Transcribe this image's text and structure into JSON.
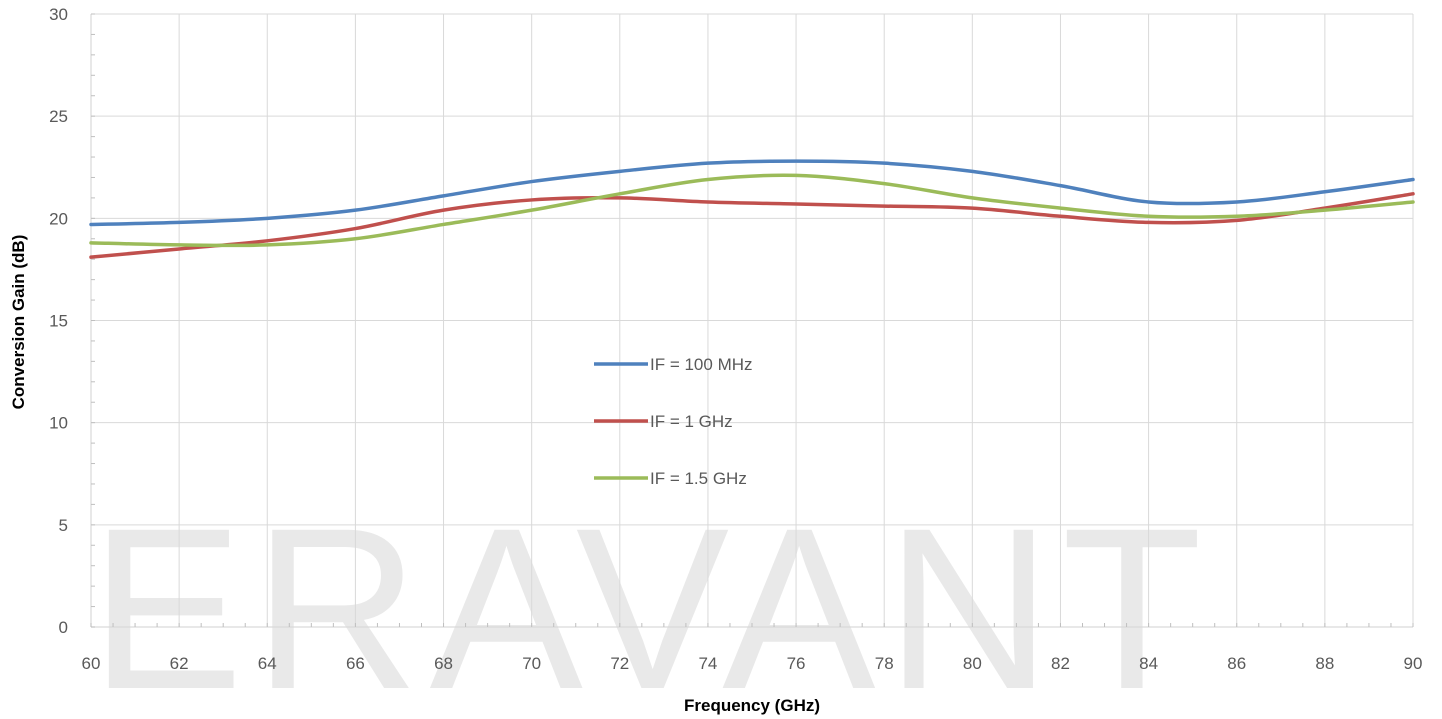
{
  "chart_data": {
    "type": "line",
    "xlabel": "Frequency (GHz)",
    "ylabel": "Conversion Gain (dB)",
    "xlim": [
      60,
      90
    ],
    "ylim": [
      0,
      30
    ],
    "x_ticks": [
      60,
      62,
      64,
      66,
      68,
      70,
      72,
      74,
      76,
      78,
      80,
      82,
      84,
      86,
      88,
      90
    ],
    "y_ticks": [
      0,
      5,
      10,
      15,
      20,
      25,
      30
    ],
    "grid": true,
    "legend_position": "center",
    "watermark": "ERAVANT",
    "series": [
      {
        "name": "IF = 100 MHz",
        "color": "#4f81bd",
        "x": [
          60,
          62,
          64,
          66,
          68,
          70,
          72,
          74,
          76,
          78,
          80,
          82,
          84,
          86,
          88,
          90
        ],
        "y": [
          19.7,
          19.8,
          20.0,
          20.4,
          21.1,
          21.8,
          22.3,
          22.7,
          22.8,
          22.7,
          22.3,
          21.6,
          20.8,
          20.8,
          21.3,
          21.9
        ]
      },
      {
        "name": "IF = 1 GHz",
        "color": "#c0504d",
        "x": [
          60,
          62,
          64,
          66,
          68,
          70,
          72,
          74,
          76,
          78,
          80,
          82,
          84,
          86,
          88,
          90
        ],
        "y": [
          18.1,
          18.5,
          18.9,
          19.5,
          20.4,
          20.9,
          21.0,
          20.8,
          20.7,
          20.6,
          20.5,
          20.1,
          19.8,
          19.9,
          20.5,
          21.2
        ]
      },
      {
        "name": "IF = 1.5 GHz",
        "color": "#9bbb59",
        "x": [
          60,
          62,
          64,
          66,
          68,
          70,
          72,
          74,
          76,
          78,
          80,
          82,
          84,
          86,
          88,
          90
        ],
        "y": [
          18.8,
          18.7,
          18.7,
          19.0,
          19.7,
          20.4,
          21.2,
          21.9,
          22.1,
          21.7,
          21.0,
          20.5,
          20.1,
          20.1,
          20.4,
          20.8
        ]
      }
    ]
  }
}
